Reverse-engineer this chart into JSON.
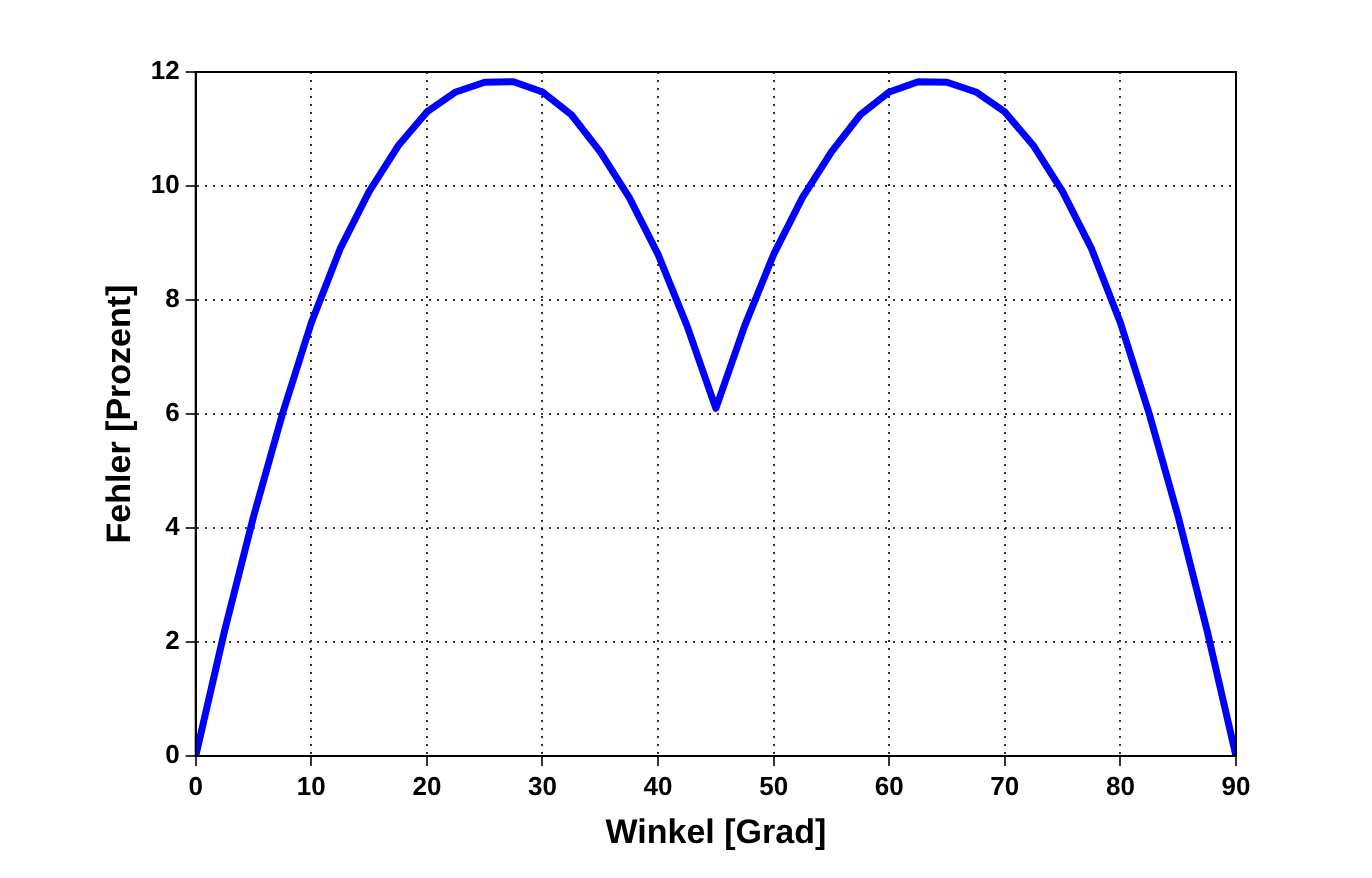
{
  "chart_data": {
    "type": "line",
    "xlabel": "Winkel [Grad]",
    "ylabel": "Fehler [Prozent]",
    "x": [
      0,
      2.5,
      5,
      7.5,
      10,
      12.5,
      15,
      17.5,
      20,
      22.5,
      25,
      27.5,
      30,
      32.5,
      35,
      37.5,
      40,
      42.5,
      45,
      47.5,
      50,
      52.5,
      55,
      57.5,
      60,
      62.5,
      65,
      67.5,
      70,
      72.5,
      75,
      77.5,
      80,
      82.5,
      85,
      87.5,
      90
    ],
    "series": [
      {
        "color": "#0000ff",
        "values": [
          0,
          2.2,
          4.2,
          6.0,
          7.6,
          8.9,
          9.9,
          10.7,
          11.3,
          11.65,
          11.82,
          11.83,
          11.65,
          11.25,
          10.6,
          9.8,
          8.8,
          7.55,
          6.1,
          7.55,
          8.8,
          9.8,
          10.6,
          11.25,
          11.65,
          11.83,
          11.82,
          11.65,
          11.3,
          10.7,
          9.9,
          8.9,
          7.6,
          6.0,
          4.2,
          2.2,
          0
        ]
      }
    ],
    "xlim": [
      0,
      90
    ],
    "xticks": [
      0,
      10,
      20,
      30,
      40,
      50,
      60,
      70,
      80,
      90
    ],
    "ylim": [
      0,
      12
    ],
    "yticks": [
      0,
      2,
      4,
      6,
      8,
      10,
      12
    ],
    "grid": true,
    "legend": false,
    "marker": "none",
    "line_style": "solid"
  }
}
